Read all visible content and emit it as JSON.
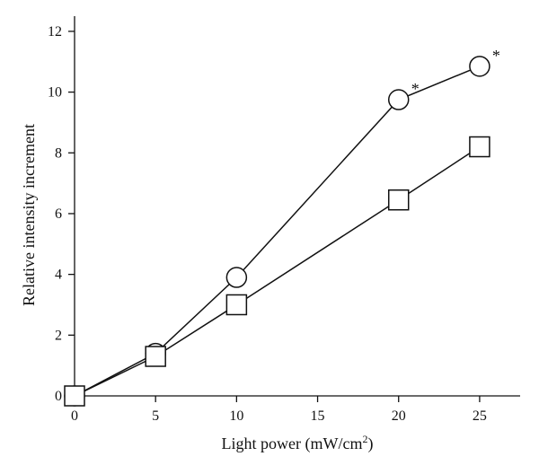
{
  "chart_data": {
    "type": "line",
    "title": "",
    "xlabel": "Light power (mW/cm",
    "xlabel_sup": "2",
    "xlabel_end": ")",
    "ylabel": "Relative intensity increment",
    "xlim": [
      0,
      27.5
    ],
    "ylim": [
      0,
      12.5
    ],
    "xticks": [
      0,
      5,
      10,
      15,
      20,
      25
    ],
    "yticks": [
      0,
      2,
      4,
      6,
      8,
      10,
      12
    ],
    "grid": false,
    "legend": "none",
    "series": [
      {
        "marker": "circle",
        "x": [
          0,
          5,
          10,
          20,
          25
        ],
        "y": [
          0,
          1.4,
          3.9,
          9.75,
          10.85
        ]
      },
      {
        "marker": "square",
        "x": [
          0,
          5,
          10,
          20,
          25
        ],
        "y": [
          0,
          1.3,
          3.0,
          6.45,
          8.2
        ]
      }
    ],
    "annotations": [
      {
        "text": "*",
        "x": 20,
        "y": 9.75
      },
      {
        "text": "*",
        "x": 25,
        "y": 10.85
      }
    ]
  }
}
